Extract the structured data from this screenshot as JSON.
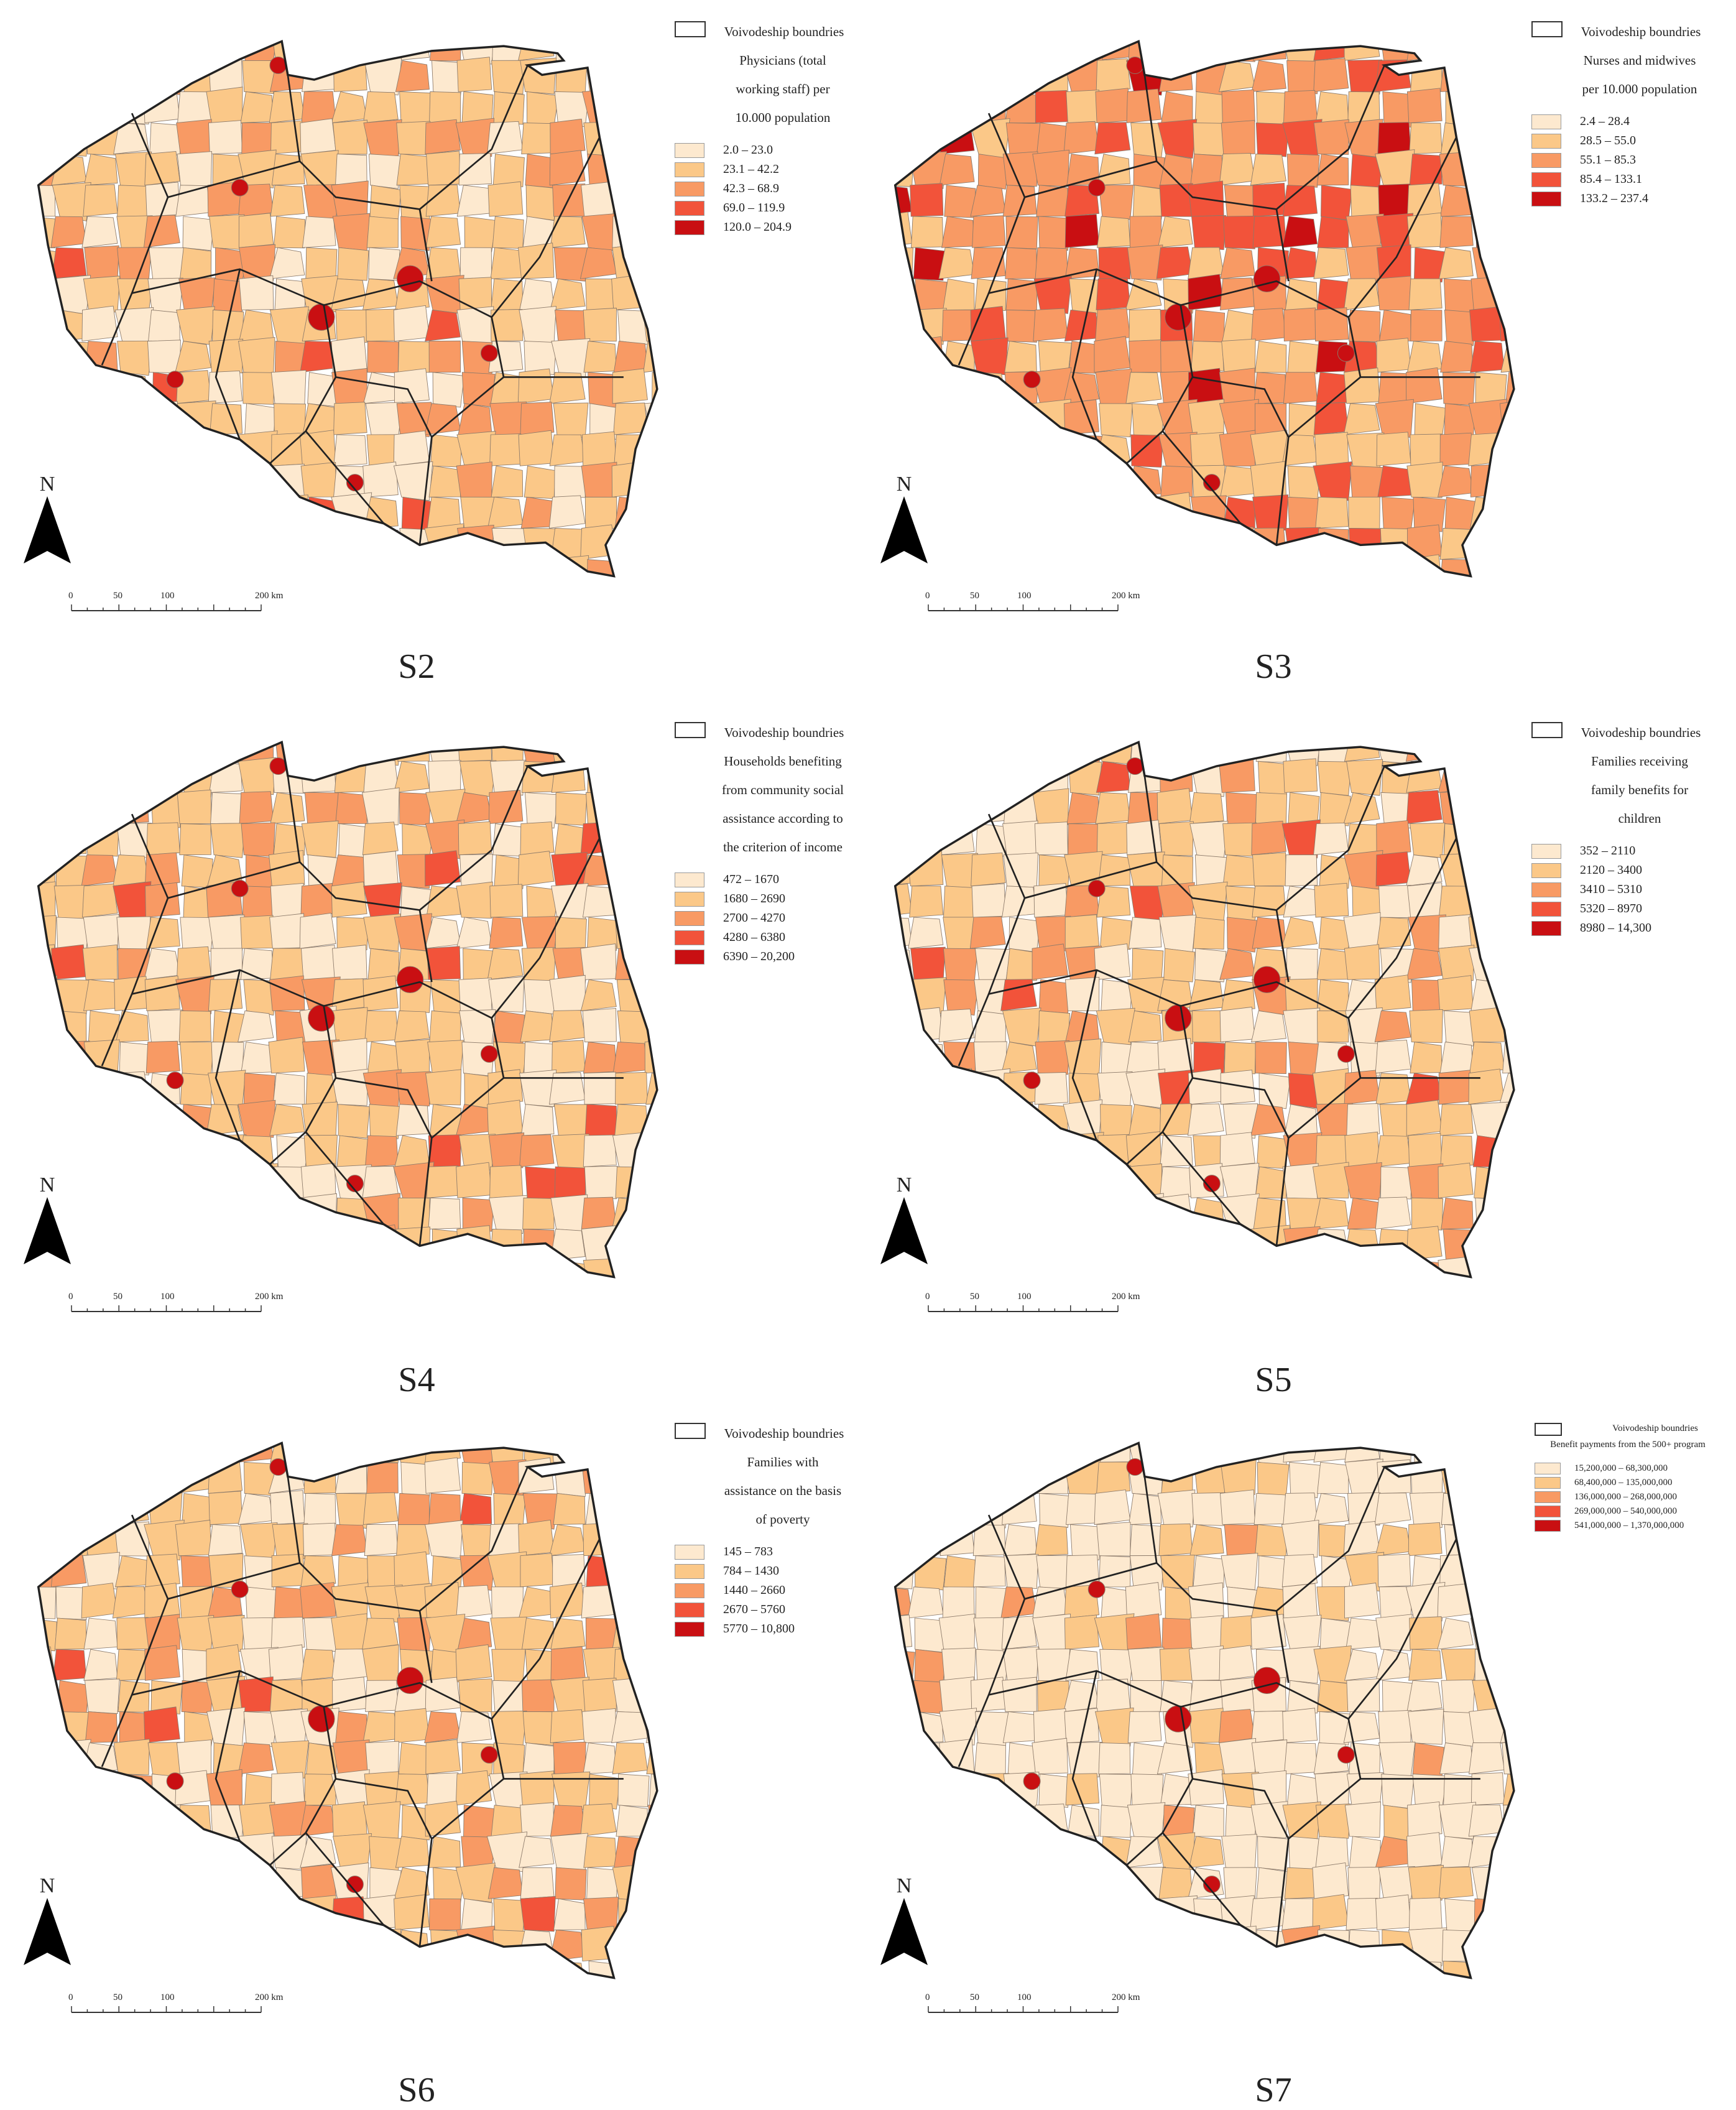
{
  "boundary_label": "Voivodeship boundries",
  "north_label": "N",
  "scale": {
    "ticks": [
      "0",
      "50",
      "100",
      "200 km"
    ]
  },
  "colors": [
    "#fde9cf",
    "#fbc888",
    "#f89a64",
    "#f2533a",
    "#c90f12"
  ],
  "boundary_color": "#222222",
  "panels": [
    {
      "label": "S2",
      "legend_title": "Physicians (total working staff) per 10.000 population",
      "classes": [
        "2.0 – 23.0",
        "23.1 – 42.2",
        "42.3 – 68.9",
        "69.0 – 119.9",
        "120.0 – 204.9"
      ],
      "dominant_class": 1
    },
    {
      "label": "S3",
      "legend_title": "Nurses and midwives per 10.000 population",
      "classes": [
        "2.4 – 28.4",
        "28.5 – 55.0",
        "55.1 – 85.3",
        "85.4 – 133.1",
        "133.2 – 237.4"
      ],
      "dominant_class": 2
    },
    {
      "label": "S4",
      "legend_title": "Households benefiting from community social assistance according to the criterion of income",
      "classes": [
        "472 – 1670",
        "1680 – 2690",
        "2700 – 4270",
        "4280 – 6380",
        "6390 – 20,200"
      ],
      "dominant_class": 1
    },
    {
      "label": "S5",
      "legend_title": "Families receiving family benefits for children",
      "classes": [
        "352 – 2110",
        "2120 – 3400",
        "3410 – 5310",
        "5320 – 8970",
        "8980 – 14,300"
      ],
      "dominant_class": 1
    },
    {
      "label": "S6",
      "legend_title": "Families with assistance on the basis of poverty",
      "classes": [
        "145 – 783",
        "784 – 1430",
        "1440 – 2660",
        "2670 – 5760",
        "5770 – 10,800"
      ],
      "dominant_class": 1
    },
    {
      "label": "S7",
      "legend_title": "Benefit payments from the 500+ program",
      "classes": [
        "15,200,000 – 68,300,000",
        "68,400,000 – 135,000,000",
        "136,000,000 – 268,000,000",
        "269,000,000 – 540,000,000",
        "541,000,000 – 1,370,000,000"
      ],
      "dominant_class": 0
    }
  ]
}
